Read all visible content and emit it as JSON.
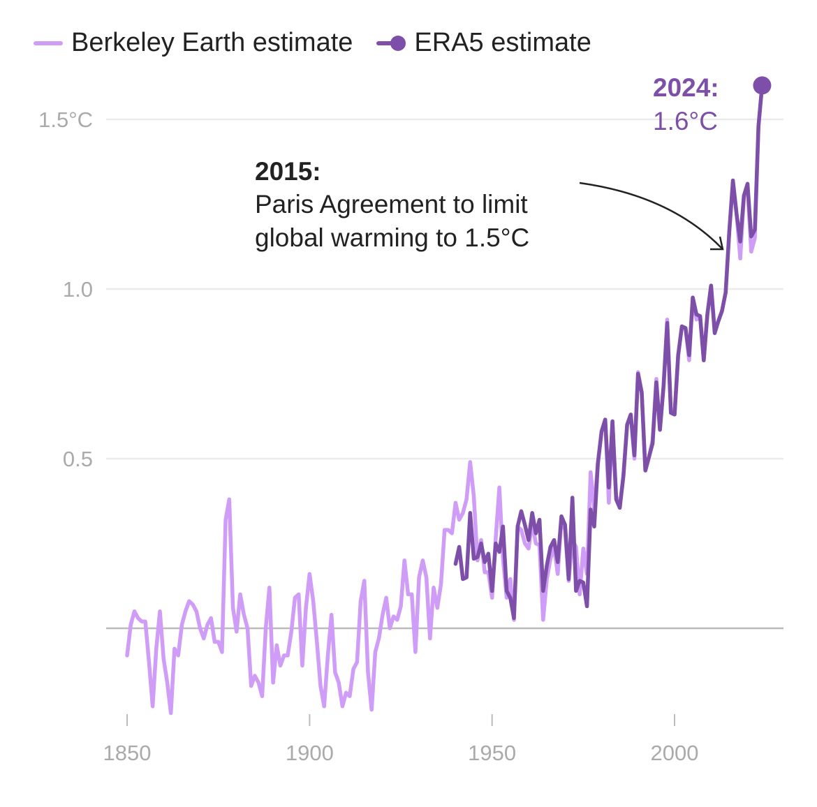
{
  "chart_data": {
    "type": "line",
    "title": "",
    "xlabel": "",
    "ylabel": "",
    "xlim": [
      1850,
      2024
    ],
    "ylim": [
      -0.26,
      1.62
    ],
    "grid": true,
    "legend_position": "top-left",
    "y_ticks": [
      {
        "value": 1.5,
        "label": "1.5°C"
      },
      {
        "value": 1.0,
        "label": "1.0"
      },
      {
        "value": 0.5,
        "label": "0.5"
      },
      {
        "value": 0,
        "label": ""
      }
    ],
    "x_ticks": [
      {
        "value": 1850,
        "label": "1850"
      },
      {
        "value": 1900,
        "label": "1900"
      },
      {
        "value": 1950,
        "label": "1950"
      },
      {
        "value": 2000,
        "label": "2000"
      }
    ],
    "series": [
      {
        "name": "Berkeley Earth estimate",
        "color": "#cf9cf7",
        "start_year": 1850,
        "values": [
          -0.08,
          0.01,
          0.05,
          0.03,
          0.02,
          0.02,
          -0.1,
          -0.23,
          -0.06,
          0.05,
          -0.09,
          -0.16,
          -0.25,
          -0.06,
          -0.08,
          0.01,
          0.05,
          0.08,
          0.07,
          0.05,
          0.0,
          -0.03,
          0.01,
          0.03,
          -0.04,
          -0.04,
          -0.07,
          0.32,
          0.38,
          0.06,
          -0.01,
          0.1,
          0.04,
          0.0,
          -0.17,
          -0.14,
          -0.16,
          -0.2,
          0.0,
          0.12,
          -0.16,
          -0.05,
          -0.11,
          -0.08,
          -0.08,
          -0.01,
          0.09,
          0.1,
          -0.11,
          0.06,
          0.16,
          0.08,
          -0.04,
          -0.17,
          -0.23,
          -0.08,
          0.04,
          -0.13,
          -0.16,
          -0.23,
          -0.19,
          -0.2,
          -0.12,
          -0.1,
          0.08,
          0.14,
          -0.13,
          -0.24,
          -0.07,
          -0.03,
          0.04,
          0.09,
          0.0,
          0.035,
          0.025,
          0.065,
          0.2,
          0.1,
          0.1,
          -0.07,
          0.15,
          0.2,
          0.15,
          -0.03,
          0.12,
          0.06,
          0.13,
          0.29,
          0.29,
          0.28,
          0.37,
          0.32,
          0.34,
          0.38,
          0.49,
          0.39,
          0.2,
          0.26,
          0.165,
          0.165,
          0.09,
          0.265,
          0.415,
          0.205,
          0.09,
          0.145,
          0.025,
          0.3,
          0.29,
          0.25,
          0.235,
          0.31,
          0.25,
          0.245,
          0.025,
          0.145,
          0.205,
          0.24,
          0.16,
          0.32,
          0.29,
          0.14,
          0.26,
          0.24,
          0.1,
          0.235,
          0.16,
          0.46,
          0.35,
          0.49,
          0.58,
          0.615,
          0.37,
          0.61,
          0.39,
          0.36,
          0.45,
          0.6,
          0.63,
          0.5,
          0.755,
          0.695,
          0.465,
          0.505,
          0.555,
          0.735,
          0.585,
          0.715,
          0.91,
          0.635,
          0.63,
          0.805,
          0.89,
          0.885,
          0.79,
          0.975,
          0.91,
          0.92,
          0.79,
          0.925,
          1.01,
          0.88,
          0.905,
          0.935,
          0.99,
          1.17,
          1.31,
          1.22,
          1.09,
          1.27,
          1.3,
          1.11,
          1.15,
          1.48,
          1.6
        ]
      },
      {
        "name": "ERA5 estimate",
        "color": "#7d4fa8",
        "start_year": 1940,
        "values": [
          0.19,
          0.24,
          0.145,
          0.15,
          0.34,
          0.205,
          0.21,
          0.25,
          0.195,
          0.22,
          0.11,
          0.25,
          0.225,
          0.3,
          0.11,
          0.09,
          0.03,
          0.3,
          0.345,
          0.305,
          0.26,
          0.34,
          0.28,
          0.32,
          0.11,
          0.185,
          0.24,
          0.26,
          0.195,
          0.33,
          0.305,
          0.145,
          0.385,
          0.11,
          0.14,
          0.135,
          0.065,
          0.35,
          0.3,
          0.485,
          0.58,
          0.615,
          0.415,
          0.61,
          0.38,
          0.355,
          0.45,
          0.6,
          0.63,
          0.51,
          0.75,
          0.695,
          0.465,
          0.505,
          0.545,
          0.725,
          0.585,
          0.715,
          0.9,
          0.635,
          0.63,
          0.805,
          0.89,
          0.885,
          0.805,
          0.975,
          0.925,
          0.92,
          0.79,
          0.925,
          1.01,
          0.87,
          0.905,
          0.935,
          0.99,
          1.17,
          1.32,
          1.22,
          1.14,
          1.275,
          1.31,
          1.155,
          1.175,
          1.48,
          1.6
        ]
      }
    ],
    "annotations": [
      {
        "year": 2015,
        "title": "2015:",
        "lines": [
          "Paris Agreement to limit",
          "global warming to 1.5°C"
        ]
      },
      {
        "year": 2024,
        "title": "2024:",
        "value_label": "1.6°C"
      }
    ]
  },
  "legend": {
    "items": [
      {
        "label": "Berkeley Earth estimate",
        "color": "#cf9cf7"
      },
      {
        "label": "ERA5 estimate",
        "color": "#7d4fa8"
      }
    ]
  },
  "colors": {
    "grid": "#ebebeb",
    "baseline": "#bbbbbb",
    "tick": "#aaaaaa",
    "annotation": "#222222"
  }
}
